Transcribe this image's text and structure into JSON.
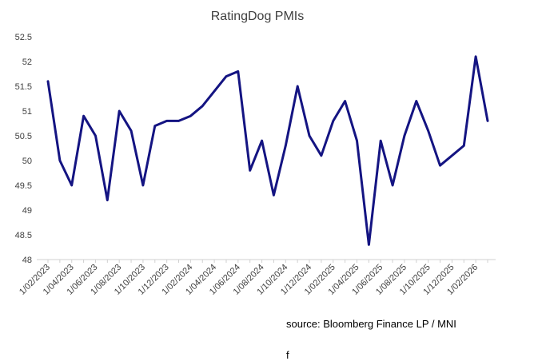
{
  "chart_data": {
    "type": "line",
    "title": "RatingDog PMIs",
    "xlabel": "",
    "ylabel": "",
    "ylim": [
      48,
      52.5
    ],
    "y_ticks": [
      "48",
      "48.5",
      "49",
      "49.5",
      "50",
      "50.5",
      "51",
      "51.5",
      "52",
      "52.5"
    ],
    "x_tick_labels": [
      "1/02/2023",
      "1/04/2023",
      "1/06/2023",
      "1/08/2023",
      "1/10/2023",
      "1/12/2023",
      "1/02/2024",
      "1/04/2024",
      "1/06/2024",
      "1/08/2024",
      "1/10/2024",
      "1/12/2024",
      "1/02/2025",
      "1/04/2025",
      "1/06/2025",
      "1/08/2025",
      "1/10/2025",
      "1/12/2025",
      "1/02/2026"
    ],
    "x": [
      "2023-02",
      "2023-03",
      "2023-04",
      "2023-05",
      "2023-06",
      "2023-07",
      "2023-08",
      "2023-09",
      "2023-10",
      "2023-11",
      "2023-12",
      "2024-01",
      "2024-02",
      "2024-03",
      "2024-04",
      "2024-05",
      "2024-06",
      "2024-07",
      "2024-08",
      "2024-09",
      "2024-10",
      "2024-11",
      "2024-12",
      "2025-01",
      "2025-02",
      "2025-03",
      "2025-04",
      "2025-05",
      "2025-06",
      "2025-07",
      "2025-08",
      "2025-09",
      "2025-10",
      "2025-11",
      "2025-12",
      "2026-01",
      "2026-02",
      "2026-03"
    ],
    "series": [
      {
        "values": [
          51.6,
          50.0,
          49.5,
          50.9,
          50.5,
          49.2,
          51.0,
          50.6,
          49.5,
          50.7,
          50.8,
          50.8,
          50.9,
          51.1,
          51.4,
          51.7,
          51.8,
          49.8,
          50.4,
          49.3,
          50.3,
          51.5,
          50.5,
          50.1,
          50.8,
          51.2,
          50.4,
          48.3,
          50.4,
          49.5,
          50.5,
          51.2,
          50.6,
          49.9,
          50.1,
          50.3,
          52.1,
          50.8
        ],
        "color": "#141482"
      }
    ],
    "grid": false,
    "legend": "none"
  },
  "source_text": "source:  Bloomberg Finance LP / MNI",
  "footer_mark": "f"
}
